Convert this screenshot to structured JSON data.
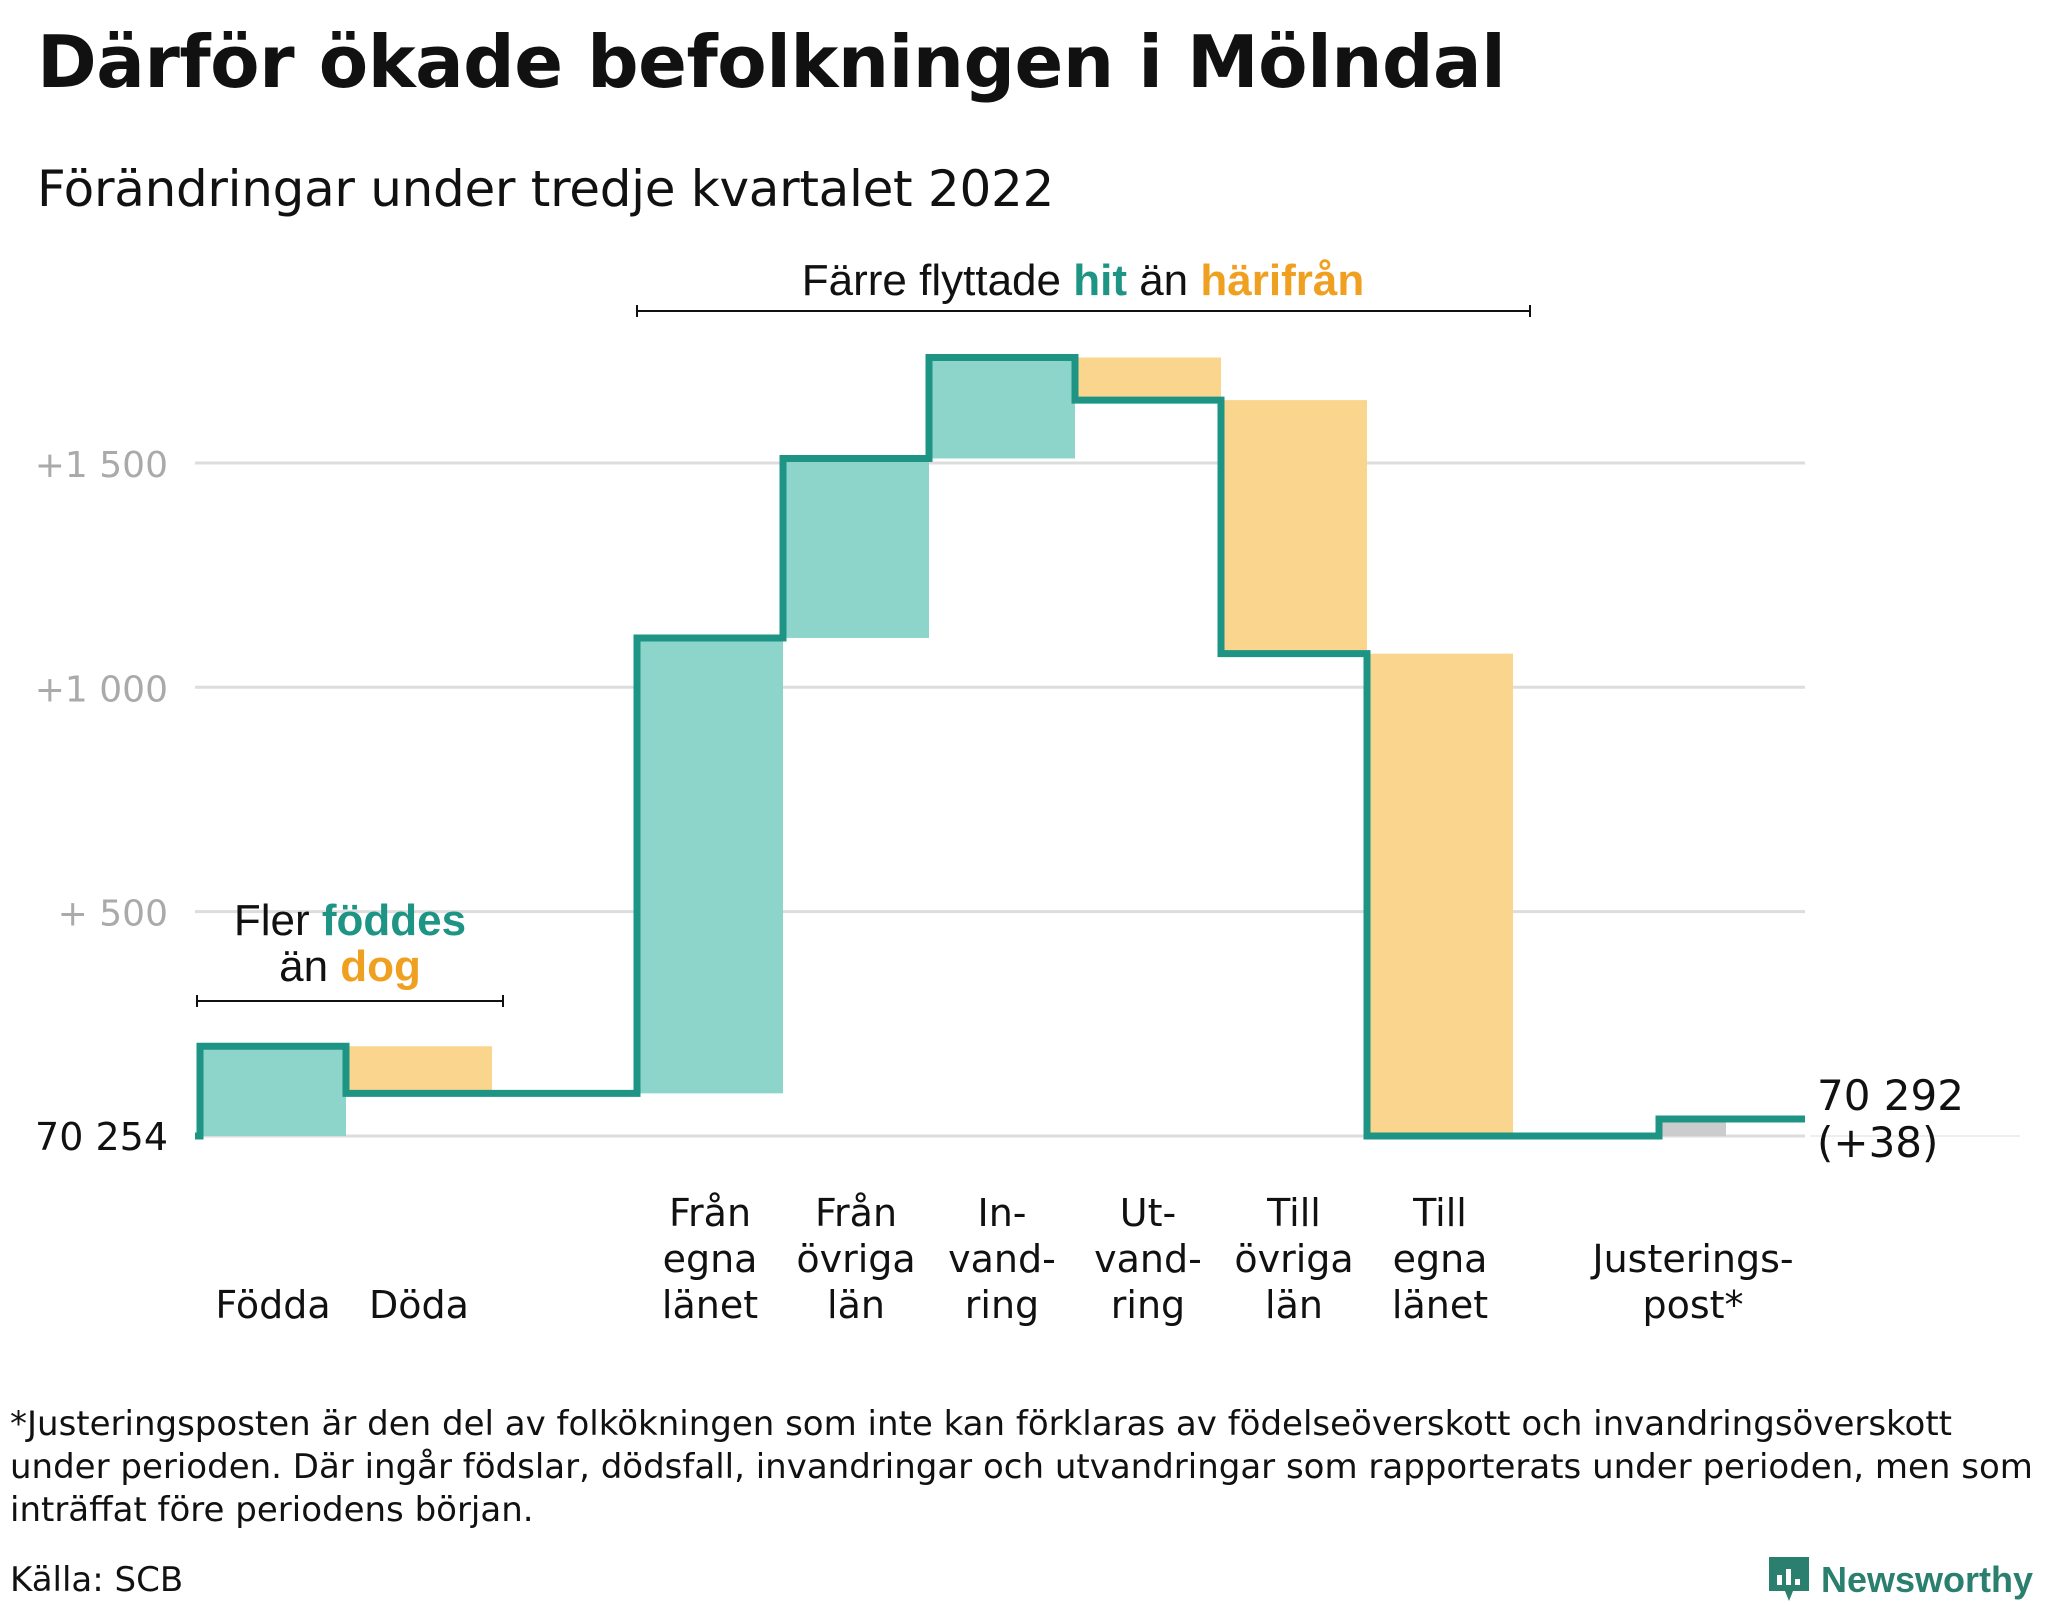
{
  "title": "Därför ökade befolkningen i Mölndal",
  "subtitle": "Förändringar under tredje kvartalet 2022",
  "footnote": "*Justeringsposten är den del av folkökningen som inte kan förklaras av födelseöverskott och invandringsöverskott under perioden. Där ingår födslar, dödsfall, invandringar och utvandringar som rapporterats under perioden, men som inträffat före periodens början.",
  "source": "Källa: SCB",
  "brand": {
    "name": "Newsworthy",
    "icon": "newsworthy-logo-icon"
  },
  "colors": {
    "inflow": "#8dd4cb",
    "outflow": "#fad58e",
    "adjust": "#cccccc",
    "line": "#1d9484",
    "teal_text": "#1d9484",
    "orange_text": "#f0a020",
    "grid": "#dddddd",
    "tick": "#aaaaaa"
  },
  "chart_data": {
    "type": "waterfall",
    "start": {
      "label": "70 254",
      "value": 0
    },
    "end": {
      "label": "70 292",
      "change_label": "(+38)",
      "value": 38
    },
    "ylim": [
      -30,
      1820
    ],
    "yticks": [
      {
        "value": 0,
        "label": ""
      },
      {
        "value": 500,
        "label": "+ 500"
      },
      {
        "value": 1000,
        "label": "+1 000"
      },
      {
        "value": 1500,
        "label": "+1 500"
      }
    ],
    "steps": [
      {
        "category": "Födda",
        "label_lines": [
          "Födda"
        ],
        "delta": 200,
        "kind": "in"
      },
      {
        "category": "Döda",
        "label_lines": [
          "Döda"
        ],
        "delta": -105,
        "kind": "out"
      },
      {
        "category": "Från egna länet",
        "label_lines": [
          "Från",
          "egna",
          "länet"
        ],
        "delta": 1015,
        "kind": "in"
      },
      {
        "category": "Från övriga län",
        "label_lines": [
          "Från",
          "övriga",
          "län"
        ],
        "delta": 400,
        "kind": "in"
      },
      {
        "category": "Invandring",
        "label_lines": [
          "In-",
          "vand-",
          "ring"
        ],
        "delta": 225,
        "kind": "in"
      },
      {
        "category": "Utvandring",
        "label_lines": [
          "Ut-",
          "vand-",
          "ring"
        ],
        "delta": -95,
        "kind": "out"
      },
      {
        "category": "Till övriga län",
        "label_lines": [
          "Till",
          "övriga",
          "län"
        ],
        "delta": -565,
        "kind": "out"
      },
      {
        "category": "Till egna länet",
        "label_lines": [
          "Till",
          "egna",
          "länet"
        ],
        "delta": -1075,
        "kind": "out"
      },
      {
        "category": "Justeringspost*",
        "label_lines": [
          "Justerings-",
          "post*"
        ],
        "delta": 38,
        "kind": "adjust"
      }
    ],
    "annotations": [
      {
        "id": "births",
        "parts": [
          [
            "Fler ",
            "plain"
          ],
          [
            "föddes",
            "teal"
          ],
          [
            "än ",
            "plain"
          ],
          [
            "dog",
            "orange"
          ]
        ]
      },
      {
        "id": "moves",
        "parts": [
          [
            "Färre flyttade ",
            "plain"
          ],
          [
            "hit",
            "teal"
          ],
          [
            " än ",
            "plain"
          ],
          [
            "härifrån",
            "orange"
          ]
        ]
      }
    ]
  }
}
